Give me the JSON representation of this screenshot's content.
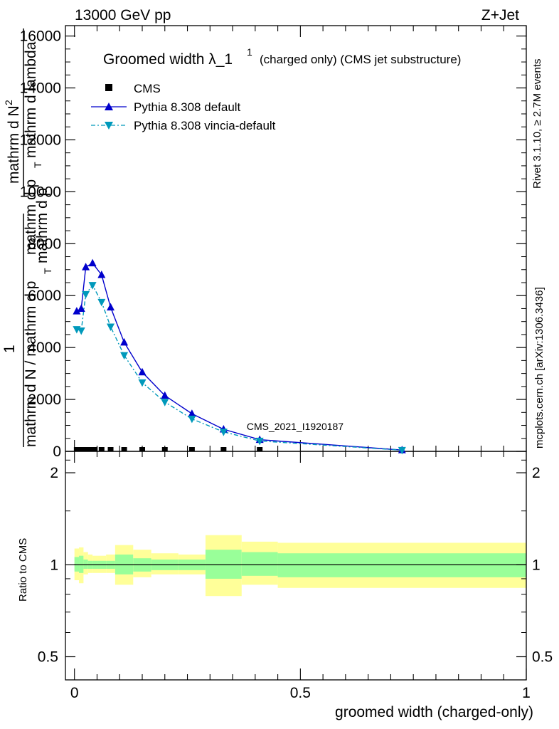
{
  "header": {
    "left": "13000 GeV pp",
    "right": "Z+Jet"
  },
  "side": {
    "rivet": "Rivet 3.1.10, ≥ 2.7M events",
    "mcplots": "mcplots.cern.ch [arXiv:1306.3436]"
  },
  "watermark": "CMS_2021_I1920187",
  "title": {
    "main": "Groomed width λ_1",
    "sup": "1",
    "rest": "(charged only) (CMS jet substructure)"
  },
  "ylabel_main": {
    "numer_a": "mathrm d",
    "numer_b": "N",
    "numer_sup": "2",
    "denom_a": "mathrm d p",
    "denom_sub": "T",
    "denom_b": "mathrm d lambda",
    "frac_one": "1",
    "lower_a": "mathrm d N / mathrm d p",
    "lower_sub": "T",
    "lower_b": "mathrm d p"
  },
  "ylabel_ratio": "Ratio to CMS",
  "xlabel": "groomed width (charged-only)",
  "colors": {
    "default": "#0000cc",
    "vincia": "#0099bb",
    "band_inner": "#99ff99",
    "band_outer": "#ffff99"
  },
  "chart_data": {
    "type": "line",
    "main": {
      "ylim": [
        0,
        16400
      ],
      "yticks": [
        0,
        2000,
        4000,
        6000,
        8000,
        10000,
        12000,
        14000,
        16000
      ],
      "yticklabels": [
        "0",
        "2000",
        "4000",
        "6000",
        "8000",
        "10000",
        "12000",
        "14000",
        "16000"
      ]
    },
    "ratio": {
      "ylog": true,
      "ylim": [
        0.42,
        2.35
      ],
      "yticks": [
        0.5,
        1,
        2
      ],
      "yticklabels": [
        "0.5",
        "1",
        "2"
      ]
    },
    "x": {
      "xlim": [
        -0.02,
        1.0
      ],
      "xticks": [
        0,
        0.5,
        1
      ],
      "xticklabels": [
        "0",
        "0.5",
        "1"
      ]
    },
    "legend_position": "top-left",
    "series": [
      {
        "name": "CMS",
        "marker": "square",
        "x": [
          0.005,
          0.015,
          0.025,
          0.035,
          0.045,
          0.06,
          0.08,
          0.11,
          0.15,
          0.2,
          0.26,
          0.33,
          0.41
        ],
        "y": [
          0,
          0,
          0,
          0,
          0,
          0,
          0,
          0,
          0,
          0,
          0,
          0,
          0
        ]
      },
      {
        "name": "Pythia 8.308 default",
        "marker": "triangle-up",
        "x": [
          0.005,
          0.015,
          0.025,
          0.04,
          0.06,
          0.08,
          0.11,
          0.15,
          0.2,
          0.26,
          0.33,
          0.41,
          0.725
        ],
        "y": [
          5400,
          5500,
          7100,
          7250,
          6800,
          5550,
          4200,
          3050,
          2150,
          1450,
          850,
          450,
          50
        ]
      },
      {
        "name": "Pythia 8.308 vincia-default",
        "marker": "triangle-down",
        "x": [
          0.005,
          0.015,
          0.025,
          0.04,
          0.06,
          0.08,
          0.11,
          0.15,
          0.2,
          0.26,
          0.33,
          0.41,
          0.725
        ],
        "y": [
          4700,
          4650,
          6050,
          6400,
          5750,
          4800,
          3700,
          2650,
          1900,
          1250,
          750,
          400,
          45
        ]
      }
    ],
    "ratio_band": {
      "bins": [
        {
          "lo": 0.0,
          "hi": 0.01,
          "inner": [
            0.95,
            1.06
          ],
          "outer": [
            0.89,
            1.13
          ]
        },
        {
          "lo": 0.01,
          "hi": 0.02,
          "inner": [
            0.94,
            1.07
          ],
          "outer": [
            0.87,
            1.14
          ]
        },
        {
          "lo": 0.02,
          "hi": 0.03,
          "inner": [
            0.97,
            1.04
          ],
          "outer": [
            0.93,
            1.1
          ]
        },
        {
          "lo": 0.03,
          "hi": 0.04,
          "inner": [
            0.97,
            1.03
          ],
          "outer": [
            0.94,
            1.08
          ]
        },
        {
          "lo": 0.04,
          "hi": 0.05,
          "inner": [
            0.97,
            1.03
          ],
          "outer": [
            0.94,
            1.07
          ]
        },
        {
          "lo": 0.05,
          "hi": 0.07,
          "inner": [
            0.97,
            1.03
          ],
          "outer": [
            0.94,
            1.07
          ]
        },
        {
          "lo": 0.07,
          "hi": 0.09,
          "inner": [
            0.97,
            1.03
          ],
          "outer": [
            0.94,
            1.08
          ]
        },
        {
          "lo": 0.09,
          "hi": 0.13,
          "inner": [
            0.93,
            1.08
          ],
          "outer": [
            0.86,
            1.16
          ]
        },
        {
          "lo": 0.13,
          "hi": 0.17,
          "inner": [
            0.95,
            1.05
          ],
          "outer": [
            0.91,
            1.12
          ]
        },
        {
          "lo": 0.17,
          "hi": 0.23,
          "inner": [
            0.96,
            1.04
          ],
          "outer": [
            0.93,
            1.09
          ]
        },
        {
          "lo": 0.23,
          "hi": 0.29,
          "inner": [
            0.96,
            1.04
          ],
          "outer": [
            0.93,
            1.08
          ]
        },
        {
          "lo": 0.29,
          "hi": 0.37,
          "inner": [
            0.9,
            1.12
          ],
          "outer": [
            0.79,
            1.25
          ]
        },
        {
          "lo": 0.37,
          "hi": 0.45,
          "inner": [
            0.92,
            1.1
          ],
          "outer": [
            0.86,
            1.19
          ]
        },
        {
          "lo": 0.45,
          "hi": 1.0,
          "inner": [
            0.91,
            1.09
          ],
          "outer": [
            0.84,
            1.18
          ]
        }
      ]
    }
  }
}
